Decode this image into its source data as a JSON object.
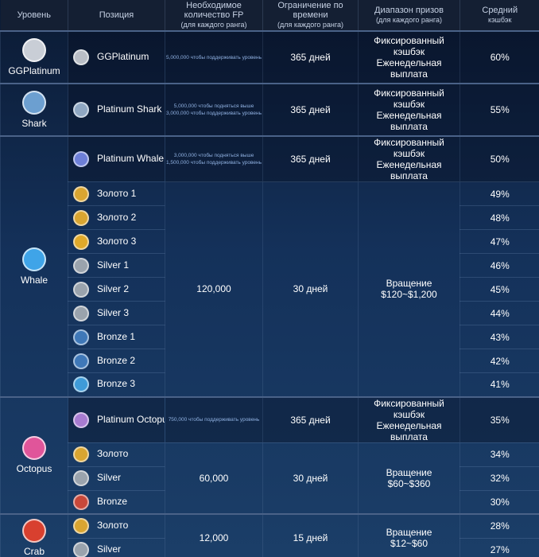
{
  "header": [
    {
      "lines": [
        "Уровень"
      ]
    },
    {
      "lines": [
        "Позиция"
      ]
    },
    {
      "lines": [
        "Необходимое количество FP",
        "(для каждого ранга)"
      ]
    },
    {
      "lines": [
        "Ограничение по времени",
        "(для каждого ранга)"
      ]
    },
    {
      "lines": [
        "Диапазон призов",
        "(для каждого ранга)"
      ]
    },
    {
      "lines": [
        "Средний",
        "кэшбэк"
      ]
    }
  ],
  "levels": [
    {
      "name": "GGPlatinum",
      "color": "#c9ced6",
      "sections": [
        {
          "fp": [
            "5,000,000 чтобы поддерживать уровень"
          ],
          "time": "365 дней",
          "prize": [
            "Фиксированный",
            "кэшбэк",
            "Еженедельная",
            "выплата"
          ],
          "positions": [
            {
              "name": "GGPlatinum",
              "cashback": "60%",
              "color": "#b9bec6"
            }
          ]
        }
      ]
    },
    {
      "name": "Shark",
      "color": "#6c9fd0",
      "sections": [
        {
          "fp": [
            "5,000,000 чтобы подняться выше",
            "3,000,000 чтобы поддерживать уровень"
          ],
          "time": "365 дней",
          "prize": [
            "Фиксированный",
            "кэшбэк",
            "Еженедельная",
            "выплата"
          ],
          "positions": [
            {
              "name": "Platinum Shark",
              "cashback": "55%",
              "color": "#8fa7c2"
            }
          ]
        }
      ]
    },
    {
      "name": "Whale",
      "color": "#3fa4e8",
      "sections": [
        {
          "fp": [
            "3,000,000 чтобы подняться выше",
            "1,500,000 чтобы поддерживать уровень"
          ],
          "time": "365 дней",
          "prize": [
            "Фиксированный кэшбэк",
            "Еженедельная выплата"
          ],
          "positions": [
            {
              "name": "Platinum Whale",
              "cashback": "50%",
              "color": "#6d7fd8"
            }
          ]
        },
        {
          "fp": "120,000",
          "time": "30 дней",
          "prize": [
            "Вращение",
            "$120~$1,200"
          ],
          "positions": [
            {
              "name": "Золото 1",
              "cashback": "49%",
              "color": "#d9a531"
            },
            {
              "name": "Золото 2",
              "cashback": "48%",
              "color": "#d9a531"
            },
            {
              "name": "Золото 3",
              "cashback": "47%",
              "color": "#e0a92a"
            },
            {
              "name": "Silver 1",
              "cashback": "46%",
              "color": "#9aa3ad"
            },
            {
              "name": "Silver 2",
              "cashback": "45%",
              "color": "#9aa3ad"
            },
            {
              "name": "Silver 3",
              "cashback": "44%",
              "color": "#9aa3ad"
            },
            {
              "name": "Bronze 1",
              "cashback": "43%",
              "color": "#3f78b8"
            },
            {
              "name": "Bronze 2",
              "cashback": "42%",
              "color": "#3f78b8"
            },
            {
              "name": "Bronze 3",
              "cashback": "41%",
              "color": "#3f9bd8"
            }
          ]
        }
      ]
    },
    {
      "name": "Octopus",
      "color": "#e0559a",
      "sections": [
        {
          "fp": [
            "750,000 чтобы поддерживать уровень"
          ],
          "time": "365 дней",
          "prize": [
            "Фиксированный кэшбэк",
            "Еженедельная выплата"
          ],
          "positions": [
            {
              "name": "Platinum Octopus",
              "cashback": "35%",
              "color": "#a77bd0"
            }
          ]
        },
        {
          "fp": "60,000",
          "time": "30 дней",
          "prize": [
            "Вращение",
            "$60~$360"
          ],
          "positions": [
            {
              "name": "Золото",
              "cashback": "34%",
              "color": "#d9a531"
            },
            {
              "name": "Silver",
              "cashback": "32%",
              "color": "#9aa3ad"
            },
            {
              "name": "Bronze",
              "cashback": "30%",
              "color": "#c8483a"
            }
          ]
        }
      ]
    },
    {
      "name": "Crab",
      "color": "#d8402f",
      "sections": [
        {
          "fp": "12,000",
          "time": "15 дней",
          "prize": [
            "Вращение",
            "$12~$60"
          ],
          "positions": [
            {
              "name": "Золото",
              "cashback": "28%",
              "color": "#d9a531"
            },
            {
              "name": "Silver",
              "cashback": "27%",
              "color": "#9aa3ad"
            }
          ]
        }
      ]
    }
  ]
}
